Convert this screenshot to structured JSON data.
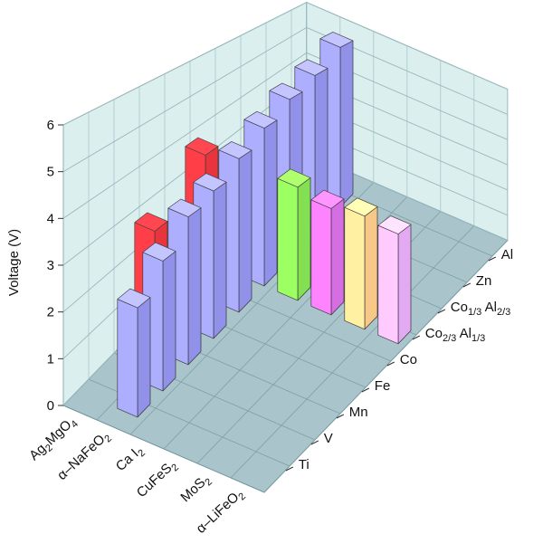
{
  "chart_data": {
    "type": "bar3d",
    "y_label": "Voltage (V)",
    "ylim": [
      0,
      6
    ],
    "yticks": [
      0,
      1,
      2,
      3,
      4,
      5,
      6
    ],
    "grid": true,
    "categories": [
      [
        "Ag",
        "2",
        "MgO",
        "4"
      ],
      [
        "α–NaFeO",
        "2"
      ],
      [
        "Ca I",
        "2"
      ],
      [
        "CuFeS",
        "2"
      ],
      [
        "MoS",
        "2"
      ],
      [
        "α–LiFeO",
        "2"
      ]
    ],
    "depth_categories": [
      [
        "Ti"
      ],
      [
        "V"
      ],
      [
        "Mn"
      ],
      [
        "Fe"
      ],
      [
        "Co"
      ],
      [
        "Co",
        "2/3",
        " Al",
        "1/3"
      ],
      [
        "Co",
        "1/3",
        " Al",
        "2/3"
      ],
      [
        "Zn"
      ],
      [
        "Al"
      ]
    ],
    "values": [
      [
        null,
        null,
        2.9,
        null,
        3.9,
        null,
        null,
        null,
        null
      ],
      [
        2.4,
        3.0,
        3.6,
        3.8,
        4.2,
        4.6,
        5.0,
        5.3,
        5.8
      ],
      [
        null,
        null,
        null,
        null,
        null,
        3.3,
        null,
        null,
        null
      ],
      [
        null,
        null,
        null,
        null,
        null,
        3.1,
        null,
        null,
        null
      ],
      [
        null,
        null,
        null,
        null,
        null,
        3.3,
        null,
        null,
        null
      ],
      [
        null,
        null,
        null,
        null,
        null,
        3.2,
        null,
        null,
        null
      ]
    ],
    "colors": [
      [
        null,
        null,
        "#e8343c",
        null,
        "#e8343c",
        null,
        null,
        null,
        null
      ],
      [
        "#9191ea",
        "#9191ea",
        "#9191ea",
        "#9191ea",
        "#9191ea",
        "#9191ea",
        "#9191ea",
        "#9191ea",
        "#9191ea"
      ],
      [
        null,
        null,
        null,
        null,
        null,
        "#82e052",
        null,
        null,
        null
      ],
      [
        null,
        null,
        null,
        null,
        null,
        "#d46ee2",
        null,
        null,
        null
      ],
      [
        null,
        null,
        null,
        null,
        null,
        "#f7c887",
        null,
        null,
        null
      ],
      [
        null,
        null,
        null,
        null,
        null,
        "#e3a9f2",
        null,
        null,
        null
      ]
    ],
    "wall_color": "#dcefef",
    "floor_color": "#a9c4ca"
  }
}
